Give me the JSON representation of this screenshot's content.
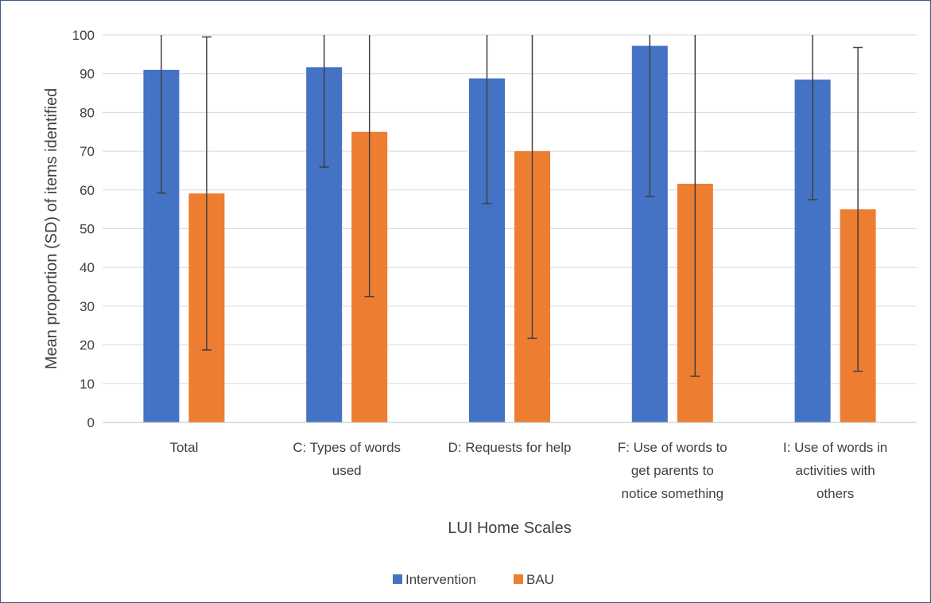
{
  "chart_data": {
    "type": "bar",
    "title": "",
    "xlabel": "LUI Home Scales",
    "ylabel": "Mean proportion (SD) of items identified",
    "ylim": [
      0,
      100
    ],
    "yticks": [
      0,
      10,
      20,
      30,
      40,
      50,
      60,
      70,
      80,
      90,
      100
    ],
    "grid": true,
    "legend_position": "bottom",
    "categories": [
      [
        "Total"
      ],
      [
        "C: Types of words",
        "used"
      ],
      [
        "D: Requests for help"
      ],
      [
        "F: Use of words to",
        "get parents to",
        "notice something"
      ],
      [
        "I: Use of words in",
        "activities with",
        "others"
      ]
    ],
    "series": [
      {
        "name": "Intervention",
        "color": "#4472c4",
        "values": [
          91,
          91.7,
          88.8,
          97.2,
          88.5
        ],
        "sd": [
          31.8,
          25.8,
          32.3,
          38.9,
          31
        ]
      },
      {
        "name": "BAU",
        "color": "#ed7d31",
        "values": [
          59.1,
          75,
          70,
          61.6,
          55
        ],
        "sd": [
          40.4,
          42.5,
          48.3,
          49.7,
          41.8
        ]
      }
    ]
  }
}
